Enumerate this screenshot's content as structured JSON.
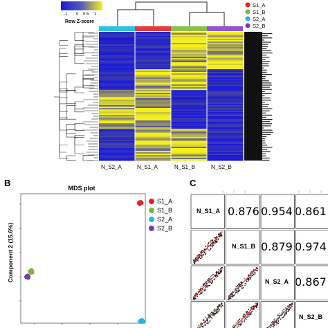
{
  "heatmap": {
    "colorkey": {
      "ticks": [
        "-1",
        "0",
        "0.5",
        "1"
      ],
      "label": "Row Z-score",
      "low": "#1b1bd6",
      "high": "#f5f21c"
    },
    "columns": [
      "N_S2_A",
      "N_S1_A",
      "N_S1_B",
      "N_S2_B"
    ],
    "column_colors": [
      "#2fc0e8",
      "#e33a3a",
      "#8bc34a",
      "#9a4fd1"
    ],
    "legend": [
      {
        "label": "S1_A",
        "color": "#e32222"
      },
      {
        "label": "S1_B",
        "color": "#7fb63a"
      },
      {
        "label": "S2_A",
        "color": "#2ab4e6"
      },
      {
        "label": "S2_B",
        "color": "#7b3aa8"
      }
    ]
  },
  "panel_b": {
    "letter": "B",
    "chart_data": {
      "type": "scatter",
      "title": "MDS plot",
      "ylabel": "Component 2 (15.6%)",
      "legend": [
        "S1_A",
        "S1_B",
        "S2_A",
        "S2_B"
      ],
      "legend_colors": [
        "#e32222",
        "#7fb63a",
        "#2ab4e6",
        "#7b3aa8"
      ],
      "series": [
        {
          "name": "S1_A",
          "points": [
            [
              0.96,
              0.93
            ]
          ]
        },
        {
          "name": "S1_B",
          "points": [
            [
              0.08,
              0.4
            ]
          ]
        },
        {
          "name": "S2_A",
          "points": [
            [
              0.97,
              0.02
            ]
          ]
        },
        {
          "name": "S2_B",
          "points": [
            [
              0.05,
              0.36
            ]
          ]
        }
      ]
    }
  },
  "panel_c": {
    "letter": "C",
    "labels": [
      "N_S1_A",
      "N_S1_B",
      "N_S2_A",
      "N_S2_B"
    ],
    "correlations": {
      "r12": "0.876",
      "r13": "0.954",
      "r14": "0.861",
      "r23": "0.879",
      "r24": "0.974",
      "r34": "0.867"
    }
  }
}
